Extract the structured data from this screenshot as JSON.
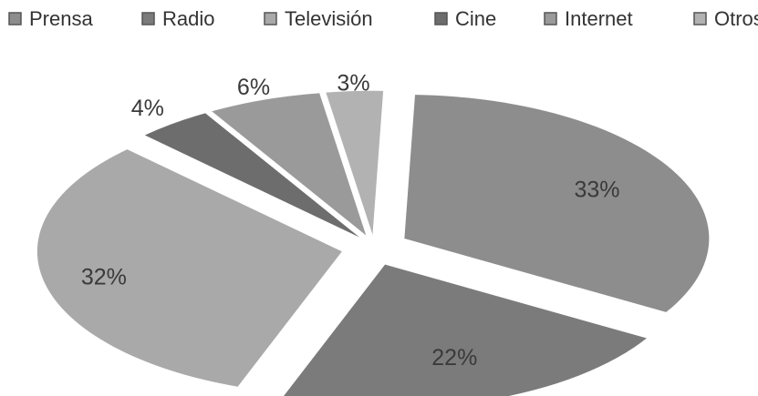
{
  "chart_data": {
    "type": "pie",
    "exploded": true,
    "legend_position": "top",
    "categories": [
      "Prensa",
      "Radio",
      "Televisión",
      "Cine",
      "Internet",
      "Otros"
    ],
    "values": [
      33,
      22,
      32,
      4,
      6,
      3
    ],
    "value_labels": [
      "33%",
      "22%",
      "32%",
      "4%",
      "6%",
      "3%"
    ],
    "colors": [
      "#8d8d8d",
      "#7b7b7b",
      "#a9a9a9",
      "#6d6d6d",
      "#9a9a9a",
      "#b2b2b2"
    ]
  }
}
